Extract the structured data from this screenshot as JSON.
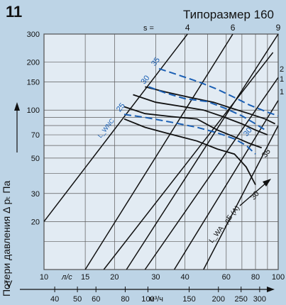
{
  "figure_number": "11",
  "size_label": "Типоразмер 160",
  "ylabel": "Потери давления Δ pₜ Па",
  "x_symbol": "V̇",
  "x_unit_ls": "л/с",
  "x_unit_m3h": "м³/ч",
  "lwnc_label": "L_WNC",
  "lwa_label": "L_WA , дБ (А)",
  "s_prefix": "s =",
  "colors": {
    "background": "#bdd4e6",
    "plot_background": "#e2ebf3",
    "grid": "#5a5a5a",
    "curve_black": "#111111",
    "curve_blue": "#1a5fb4"
  },
  "chart_data": {
    "type": "line",
    "xscale": "log",
    "yscale": "log",
    "xlim": [
      10,
      100
    ],
    "ylim": [
      10,
      300
    ],
    "grid": true,
    "x_ticks_ls": [
      10,
      15,
      20,
      30,
      40,
      60,
      80,
      100
    ],
    "x_ticks_ls_labels": [
      "10",
      "15",
      "20",
      "30",
      "40",
      "60",
      "80",
      "100"
    ],
    "x_ticks_m3h": [
      40,
      50,
      60,
      80,
      100,
      150,
      200,
      250,
      300
    ],
    "x_ticks_m3h_labels": [
      "40",
      "50",
      "60",
      "80",
      "100",
      "150",
      "200",
      "250",
      "300"
    ],
    "y_ticks": [
      20,
      30,
      50,
      70,
      100,
      150,
      200,
      300
    ],
    "y_ticks_labels": [
      "20",
      "30",
      "50",
      "70",
      "100",
      "150",
      "200",
      "300"
    ],
    "s_lines": [
      {
        "label": "4",
        "points": [
          [
            10,
            20
          ],
          [
            41,
            300
          ]
        ]
      },
      {
        "label": "6",
        "points": [
          [
            15,
            10
          ],
          [
            64,
            300
          ]
        ]
      },
      {
        "label": "9",
        "points": [
          [
            22.5,
            10
          ],
          [
            100,
            300
          ]
        ]
      },
      {
        "label": "",
        "points": [
          [
            18,
            10
          ],
          [
            95,
            230
          ]
        ]
      },
      {
        "label": "",
        "points": [
          [
            27,
            10
          ],
          [
            100,
            160
          ]
        ]
      },
      {
        "label": "",
        "points": [
          [
            36,
            10
          ],
          [
            100,
            115
          ]
        ]
      },
      {
        "label": "",
        "points": [
          [
            48,
            10
          ],
          [
            100,
            80
          ]
        ]
      }
    ],
    "s_edge_labels": [
      "1",
      "1",
      "2"
    ],
    "lwa_series": [
      {
        "name": "30",
        "points": [
          [
            22,
            88
          ],
          [
            27,
            78
          ],
          [
            33,
            72
          ],
          [
            45,
            64
          ],
          [
            55,
            57
          ],
          [
            65,
            53
          ],
          [
            73,
            44
          ],
          [
            80,
            34
          ]
        ]
      },
      {
        "name": "",
        "points": [
          [
            22,
            105
          ],
          [
            27,
            95
          ],
          [
            35,
            91
          ],
          [
            45,
            88
          ],
          [
            55,
            75
          ],
          [
            65,
            68
          ],
          [
            75,
            62
          ],
          [
            85,
            58
          ]
        ]
      },
      {
        "name": "",
        "points": [
          [
            24,
            125
          ],
          [
            30,
            112
          ],
          [
            38,
            106
          ],
          [
            48,
            100
          ],
          [
            58,
            91
          ],
          [
            70,
            82
          ],
          [
            80,
            75
          ],
          [
            90,
            70
          ]
        ]
      },
      {
        "name": "",
        "points": [
          [
            27,
            140
          ],
          [
            33,
            130
          ],
          [
            42,
            120
          ],
          [
            53,
            112
          ],
          [
            63,
            103
          ],
          [
            75,
            95
          ],
          [
            88,
            88
          ],
          [
            97,
            82
          ]
        ]
      }
    ],
    "lwnc_series": [
      {
        "name": "25",
        "points": [
          [
            22,
            94
          ],
          [
            27,
            90
          ],
          [
            35,
            84
          ],
          [
            45,
            78
          ],
          [
            55,
            72
          ],
          [
            65,
            66
          ],
          [
            73,
            60
          ],
          [
            80,
            53
          ]
        ]
      },
      {
        "name": "30",
        "points": [
          [
            28,
            140
          ],
          [
            33,
            128
          ],
          [
            40,
            118
          ],
          [
            50,
            113
          ],
          [
            60,
            102
          ],
          [
            70,
            92
          ],
          [
            80,
            82
          ],
          [
            88,
            75
          ]
        ]
      },
      {
        "name": "35",
        "points": [
          [
            31,
            182
          ],
          [
            38,
            165
          ],
          [
            46,
            150
          ],
          [
            55,
            135
          ],
          [
            65,
            120
          ],
          [
            75,
            108
          ],
          [
            90,
            97
          ],
          [
            100,
            92
          ]
        ]
      }
    ],
    "annotations": [
      "35",
      "30",
      "25",
      "35",
      "30"
    ]
  }
}
